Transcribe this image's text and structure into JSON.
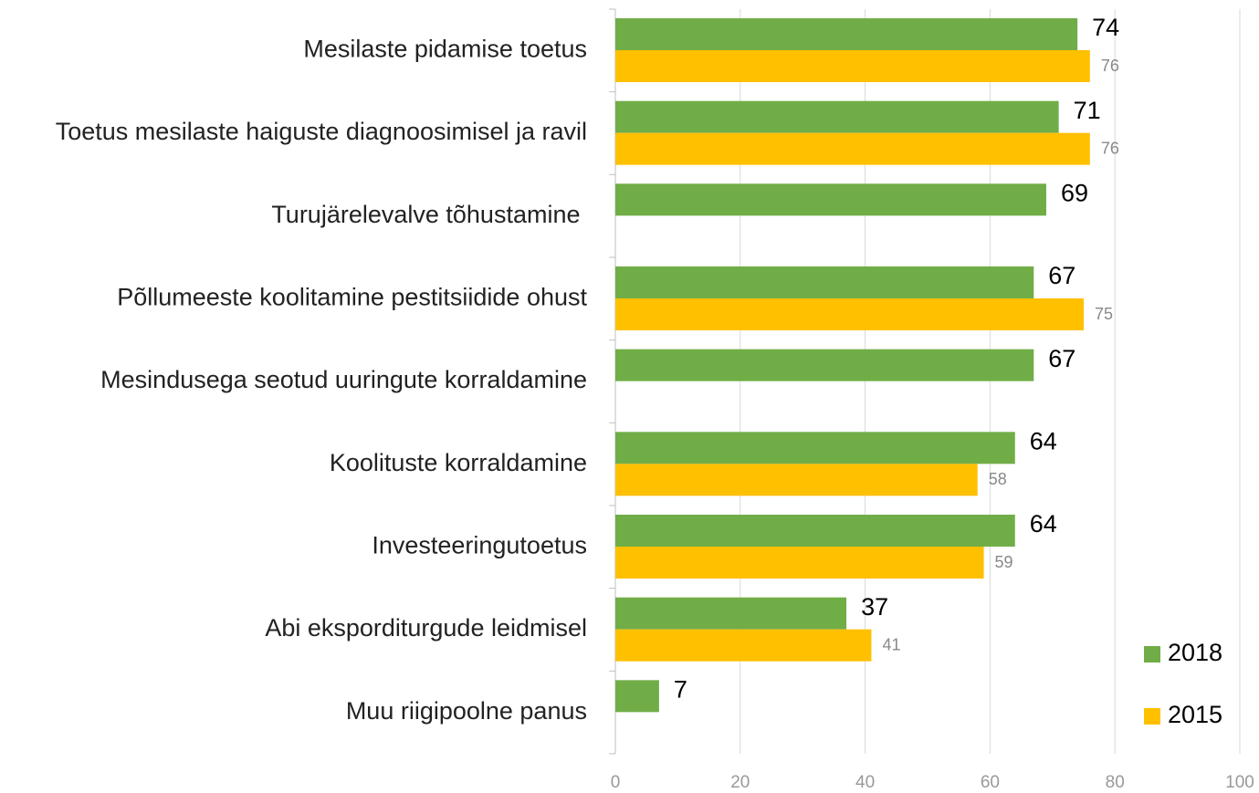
{
  "chart_data": {
    "type": "bar",
    "orientation": "horizontal",
    "categories": [
      "Mesilaste pidamise toetus",
      "Toetus mesilaste haiguste diagnoosimisel ja ravil",
      "Turujärelevalve tõhustamine ",
      "Põllumeeste koolitamine pestitsiidide ohust",
      "Mesindusega seotud uuringute korraldamine",
      "Koolituste korraldamine",
      "Investeeringutoetus",
      "Abi eksporditurgude leidmisel",
      "Muu riigipoolne panus"
    ],
    "series": [
      {
        "name": "2018",
        "color": "#70ad47",
        "values": [
          74,
          71,
          69,
          67,
          67,
          64,
          64,
          37,
          7
        ]
      },
      {
        "name": "2015",
        "color": "#ffc000",
        "values": [
          76,
          76,
          null,
          75,
          null,
          58,
          59,
          41,
          null
        ]
      }
    ],
    "xlim": [
      0,
      100
    ],
    "xticks": [
      0,
      20,
      40,
      60,
      80,
      100
    ],
    "grid": true,
    "legend": "lower right"
  }
}
